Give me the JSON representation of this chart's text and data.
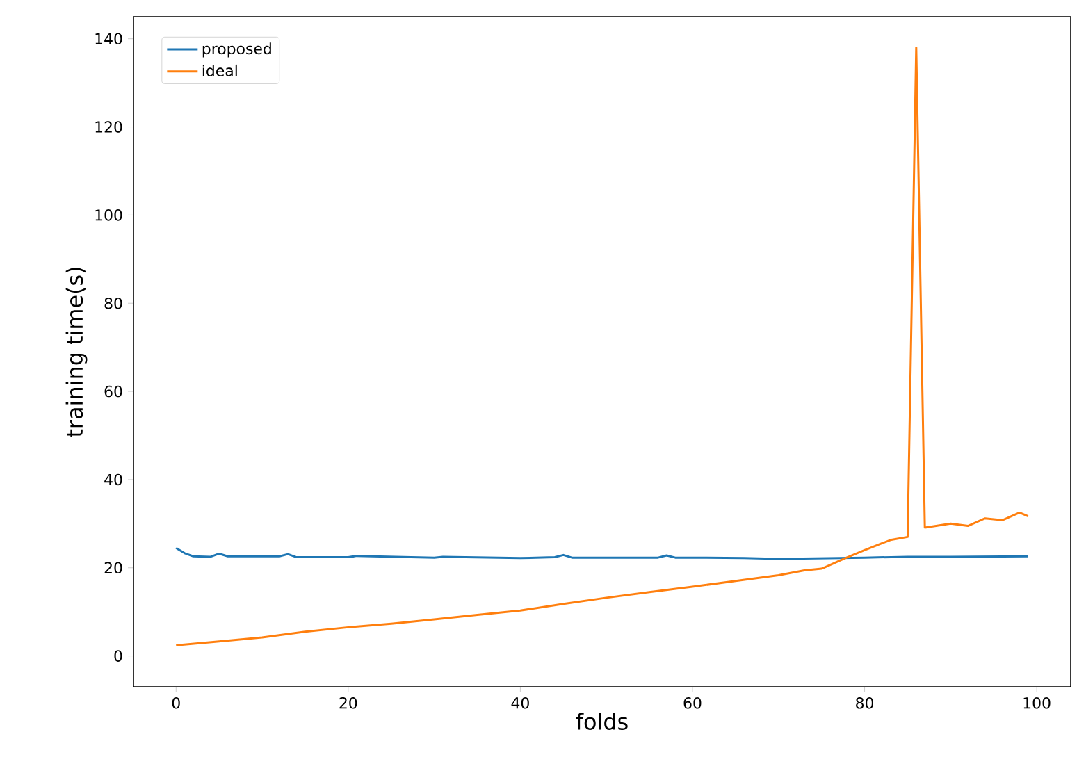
{
  "chart_data": {
    "type": "line",
    "xlabel": "folds",
    "ylabel": "training time(s)",
    "xlim": [
      -4.95,
      103.95
    ],
    "ylim": [
      -7,
      145
    ],
    "xticks": [
      0,
      20,
      40,
      60,
      80,
      100
    ],
    "yticks": [
      0,
      20,
      40,
      60,
      80,
      100,
      120,
      140
    ],
    "legend": "top left",
    "grid": false,
    "marker": "none",
    "line_style": "solid",
    "series": [
      {
        "name": "proposed",
        "color": "#1f77b4",
        "x": [
          0,
          1,
          2,
          4,
          5,
          6,
          12,
          13,
          14,
          20,
          21,
          30,
          31,
          40,
          44,
          45,
          46,
          56,
          57,
          58,
          60,
          66,
          70,
          80,
          85,
          90,
          99
        ],
        "values": [
          24.5,
          23.3,
          22.6,
          22.5,
          23.2,
          22.6,
          22.6,
          23.1,
          22.4,
          22.4,
          22.7,
          22.3,
          22.5,
          22.2,
          22.4,
          22.9,
          22.3,
          22.3,
          22.8,
          22.3,
          22.3,
          22.2,
          22.0,
          22.3,
          22.5,
          22.5,
          22.6
        ]
      },
      {
        "name": "ideal",
        "color": "#ff7f0e",
        "x": [
          0,
          5,
          10,
          15,
          20,
          25,
          30,
          35,
          40,
          45,
          50,
          55,
          60,
          65,
          70,
          73,
          75,
          78,
          80,
          83,
          85,
          86,
          87,
          90,
          92,
          94,
          96,
          98,
          99
        ],
        "values": [
          2.4,
          3.3,
          4.2,
          5.5,
          6.5,
          7.3,
          8.3,
          9.3,
          10.3,
          11.8,
          13.2,
          14.5,
          15.7,
          17.0,
          18.3,
          19.4,
          19.8,
          22.4,
          24.0,
          26.3,
          27.0,
          138,
          29.1,
          30.0,
          29.5,
          31.2,
          30.8,
          32.5,
          31.7
        ]
      }
    ]
  }
}
